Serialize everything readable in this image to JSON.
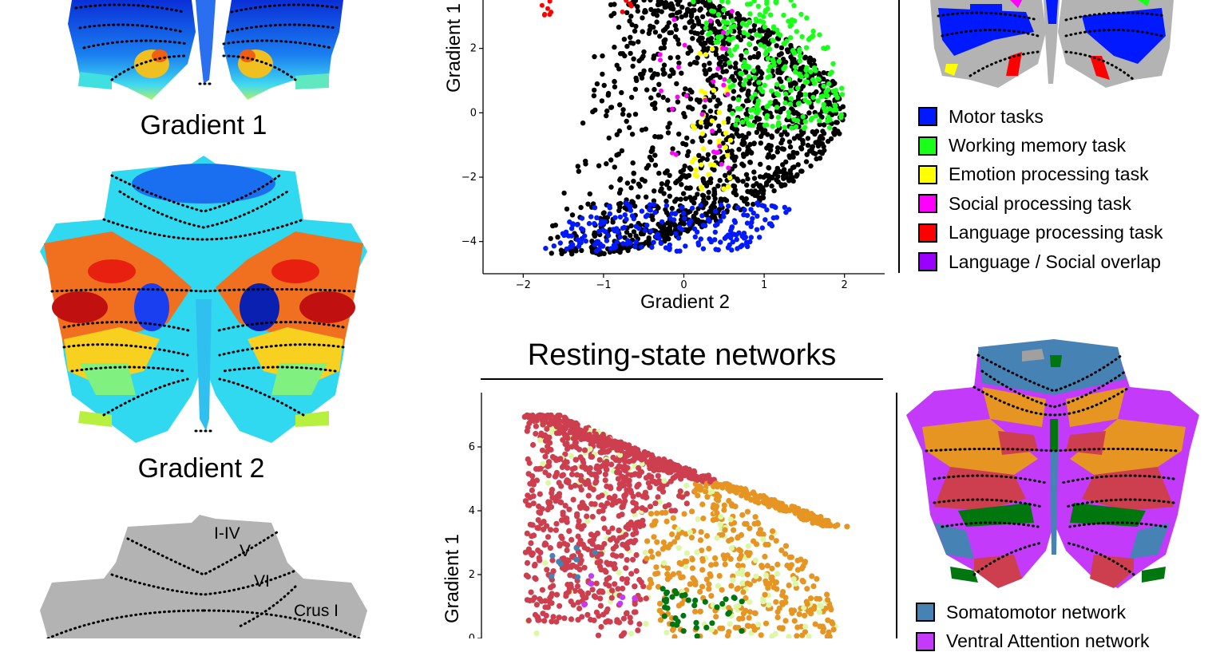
{
  "left_panels": {
    "gradient1_label": "Gradient 1",
    "gradient2_label": "Gradient 2",
    "lobule_labels": [
      "I-IV",
      "V",
      "VI",
      "Crus I"
    ]
  },
  "task_section": {
    "legend": [
      {
        "label": "Motor tasks",
        "color": "#0019ff"
      },
      {
        "label": "Working memory task",
        "color": "#19ff19"
      },
      {
        "label": "Emotion processing task",
        "color": "#ffff00"
      },
      {
        "label": "Social processing task",
        "color": "#ff00ff"
      },
      {
        "label": "Language processing task",
        "color": "#ff0000"
      },
      {
        "label": "Language / Social overlap",
        "color": "#9b00ff"
      }
    ]
  },
  "rest_section": {
    "title": "Resting-state networks",
    "legend": [
      {
        "label": "Somatomotor network",
        "color": "#4682b4"
      },
      {
        "label": "Ventral Attention network",
        "color": "#c43afa"
      }
    ]
  },
  "chart_data": [
    {
      "type": "scatter",
      "title": "",
      "xlabel": "Gradient 2",
      "ylabel": "Gradient 1",
      "xlim": [
        -2.5,
        2.5
      ],
      "ylim": [
        -5,
        4
      ],
      "x_ticks": [
        "−2",
        "−1",
        "0",
        "1",
        "2"
      ],
      "y_ticks": [
        "2",
        "0",
        "−2",
        "−4"
      ],
      "series": [
        {
          "name": "Motor tasks",
          "color": "#0019ff"
        },
        {
          "name": "Working memory task",
          "color": "#19ff19"
        },
        {
          "name": "Emotion processing task",
          "color": "#ffff00"
        },
        {
          "name": "Social processing task",
          "color": "#ff00ff"
        },
        {
          "name": "Language processing task",
          "color": "#ff0000"
        },
        {
          "color": "#000000"
        }
      ]
    },
    {
      "type": "scatter",
      "title": "Resting-state networks",
      "xlabel": "",
      "ylabel": "Gradient 1",
      "ylim": [
        0,
        7.5
      ],
      "y_ticks": [
        "6",
        "4",
        "2",
        "0"
      ],
      "series": [
        {
          "color": "#cd3e4e"
        },
        {
          "color": "#e69422"
        },
        {
          "color": "#dcf8a4"
        },
        {
          "color": "#00760e"
        },
        {
          "name": "Somatomotor network",
          "color": "#4682b4"
        },
        {
          "name": "Ventral Attention network",
          "color": "#c43afa"
        }
      ]
    }
  ]
}
